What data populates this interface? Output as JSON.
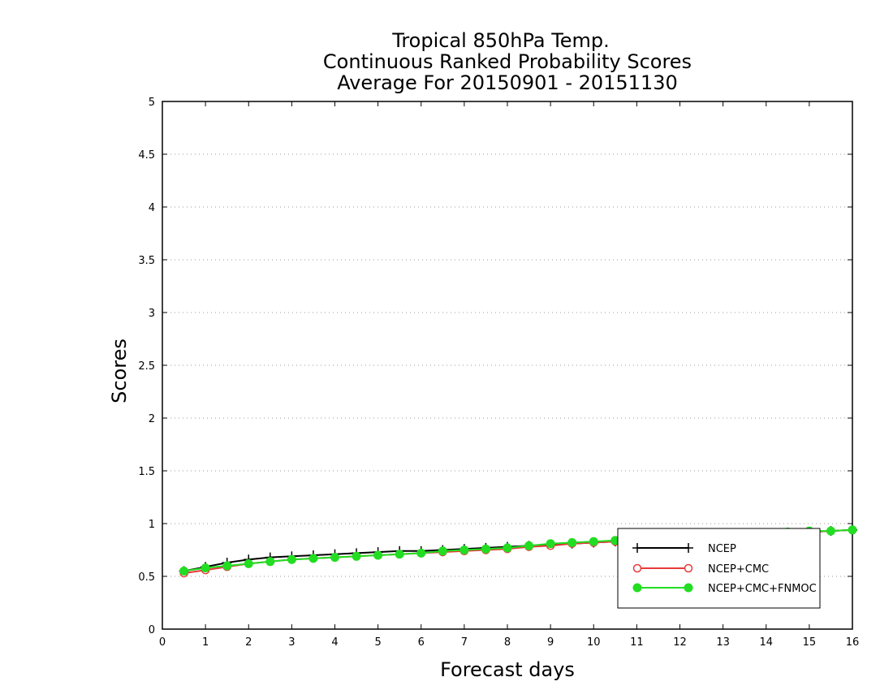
{
  "chart_data": {
    "type": "line",
    "title": [
      "Tropical 850hPa Temp.",
      "Continuous Ranked Probability Scores",
      "Average For 20150901 - 20151130"
    ],
    "xlabel": "Forecast days",
    "ylabel": "Scores",
    "xlim": [
      0,
      16
    ],
    "ylim": [
      0,
      5
    ],
    "xticks": [
      "0",
      "1",
      "2",
      "3",
      "4",
      "5",
      "6",
      "7",
      "8",
      "9",
      "10",
      "11",
      "12",
      "13",
      "14",
      "15",
      "16"
    ],
    "yticks": [
      "0",
      "0.5",
      "1",
      "1.5",
      "2",
      "2.5",
      "3",
      "3.5",
      "4",
      "4.5",
      "5"
    ],
    "grid": "horizontal dotted",
    "legend_position": "bottom-right",
    "x": [
      0.5,
      1,
      1.5,
      2,
      2.5,
      3,
      3.5,
      4,
      4.5,
      5,
      5.5,
      6,
      6.5,
      7,
      7.5,
      8,
      8.5,
      9,
      9.5,
      10,
      10.5,
      11,
      11.5,
      12,
      12.5,
      13,
      13.5,
      14,
      14.5,
      15,
      15.5,
      16
    ],
    "series": [
      {
        "name": "NCEP",
        "color": "#000000",
        "marker": "plus",
        "values": [
          0.55,
          0.59,
          0.63,
          0.66,
          0.68,
          0.69,
          0.7,
          0.71,
          0.72,
          0.73,
          0.74,
          0.74,
          0.75,
          0.76,
          0.77,
          0.78,
          0.79,
          0.8,
          0.81,
          0.82,
          0.83,
          0.84,
          0.85,
          0.86,
          0.87,
          0.88,
          0.89,
          0.9,
          0.91,
          0.92,
          0.93,
          0.94
        ]
      },
      {
        "name": "NCEP+CMC",
        "color": "#e83a3a",
        "marker": "open-circle",
        "values": [
          0.53,
          0.56,
          0.59,
          0.62,
          0.64,
          0.66,
          0.67,
          0.68,
          0.69,
          0.7,
          0.71,
          0.72,
          0.73,
          0.74,
          0.75,
          0.76,
          0.78,
          0.79,
          0.81,
          0.82,
          0.83,
          0.84,
          0.85,
          0.86,
          0.87,
          0.88,
          0.89,
          0.9,
          0.91,
          0.92,
          0.93,
          0.94
        ]
      },
      {
        "name": "NCEP+CMC+FNMOC",
        "color": "#22dd22",
        "marker": "filled-circle",
        "values": [
          0.55,
          0.58,
          0.6,
          0.62,
          0.64,
          0.66,
          0.67,
          0.68,
          0.69,
          0.7,
          0.71,
          0.72,
          0.74,
          0.75,
          0.76,
          0.77,
          0.79,
          0.81,
          0.82,
          0.83,
          0.84,
          0.85,
          0.86,
          0.87,
          0.88,
          0.89,
          0.9,
          0.91,
          0.92,
          0.93,
          0.93,
          0.94
        ]
      }
    ]
  }
}
